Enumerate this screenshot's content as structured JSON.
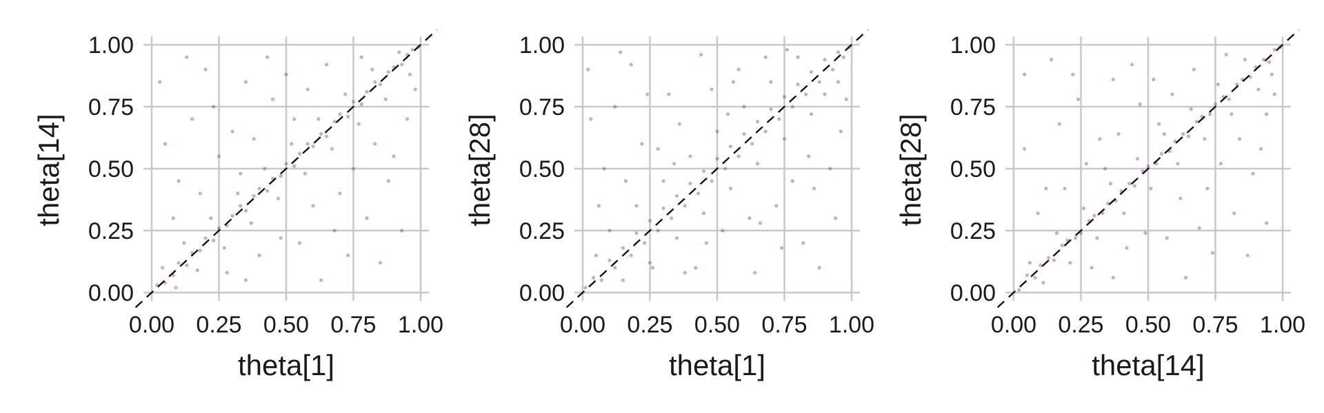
{
  "colors": {
    "point": "#7b2a86",
    "grid": "#c8c8c8",
    "identity_line": "#111111"
  },
  "chart_data": [
    {
      "type": "scatter",
      "xlabel": "theta[1]",
      "ylabel": "theta[14]",
      "xlim": [
        0,
        1
      ],
      "ylim": [
        0,
        1
      ],
      "xticks": [
        "0.00",
        "0.25",
        "0.50",
        "0.75",
        "1.00"
      ],
      "yticks": [
        "0.00",
        "0.25",
        "0.50",
        "0.75",
        "1.00"
      ],
      "grid": true,
      "reference_line": {
        "slope": 1,
        "intercept": 0,
        "style": "dashed"
      },
      "point_style": {
        "color": "#7b2a86",
        "alpha": 0.25
      },
      "points_description_count": 300,
      "points": [
        [
          0.02,
          0.03
        ],
        [
          0.05,
          0.04
        ],
        [
          0.08,
          0.07
        ],
        [
          0.1,
          0.12
        ],
        [
          0.13,
          0.11
        ],
        [
          0.15,
          0.16
        ],
        [
          0.18,
          0.17
        ],
        [
          0.2,
          0.22
        ],
        [
          0.23,
          0.21
        ],
        [
          0.25,
          0.26
        ],
        [
          0.28,
          0.27
        ],
        [
          0.3,
          0.31
        ],
        [
          0.33,
          0.35
        ],
        [
          0.35,
          0.33
        ],
        [
          0.38,
          0.39
        ],
        [
          0.4,
          0.42
        ],
        [
          0.43,
          0.41
        ],
        [
          0.45,
          0.46
        ],
        [
          0.48,
          0.47
        ],
        [
          0.5,
          0.52
        ],
        [
          0.53,
          0.51
        ],
        [
          0.55,
          0.56
        ],
        [
          0.58,
          0.6
        ],
        [
          0.6,
          0.59
        ],
        [
          0.63,
          0.64
        ],
        [
          0.65,
          0.63
        ],
        [
          0.68,
          0.69
        ],
        [
          0.7,
          0.72
        ],
        [
          0.73,
          0.71
        ],
        [
          0.75,
          0.77
        ],
        [
          0.78,
          0.76
        ],
        [
          0.8,
          0.81
        ],
        [
          0.83,
          0.85
        ],
        [
          0.85,
          0.84
        ],
        [
          0.88,
          0.89
        ],
        [
          0.9,
          0.91
        ],
        [
          0.93,
          0.92
        ],
        [
          0.95,
          0.96
        ],
        [
          0.97,
          0.98
        ],
        [
          0.99,
          0.99
        ],
        [
          0.04,
          0.1
        ],
        [
          0.09,
          0.02
        ],
        [
          0.12,
          0.2
        ],
        [
          0.17,
          0.09
        ],
        [
          0.22,
          0.3
        ],
        [
          0.27,
          0.18
        ],
        [
          0.32,
          0.4
        ],
        [
          0.37,
          0.28
        ],
        [
          0.42,
          0.5
        ],
        [
          0.47,
          0.38
        ],
        [
          0.52,
          0.6
        ],
        [
          0.57,
          0.48
        ],
        [
          0.62,
          0.7
        ],
        [
          0.67,
          0.58
        ],
        [
          0.72,
          0.8
        ],
        [
          0.77,
          0.68
        ],
        [
          0.82,
          0.9
        ],
        [
          0.87,
          0.78
        ],
        [
          0.92,
          0.97
        ],
        [
          0.96,
          0.88
        ],
        [
          0.1,
          0.45
        ],
        [
          0.15,
          0.7
        ],
        [
          0.2,
          0.9
        ],
        [
          0.3,
          0.65
        ],
        [
          0.35,
          0.85
        ],
        [
          0.4,
          0.15
        ],
        [
          0.55,
          0.2
        ],
        [
          0.6,
          0.35
        ],
        [
          0.7,
          0.4
        ],
        [
          0.8,
          0.3
        ],
        [
          0.9,
          0.55
        ],
        [
          0.85,
          0.12
        ],
        [
          0.05,
          0.6
        ],
        [
          0.25,
          0.55
        ],
        [
          0.45,
          0.78
        ],
        [
          0.65,
          0.92
        ],
        [
          0.75,
          0.5
        ],
        [
          0.95,
          0.7
        ],
        [
          0.5,
          0.88
        ],
        [
          0.35,
          0.05
        ],
        [
          0.08,
          0.3
        ],
        [
          0.18,
          0.4
        ],
        [
          0.28,
          0.08
        ],
        [
          0.38,
          0.62
        ],
        [
          0.48,
          0.22
        ],
        [
          0.58,
          0.82
        ],
        [
          0.68,
          0.25
        ],
        [
          0.78,
          0.95
        ],
        [
          0.88,
          0.45
        ],
        [
          0.98,
          0.82
        ],
        [
          0.03,
          0.85
        ],
        [
          0.13,
          0.95
        ],
        [
          0.23,
          0.75
        ],
        [
          0.43,
          0.95
        ],
        [
          0.63,
          0.05
        ],
        [
          0.73,
          0.15
        ],
        [
          0.83,
          0.6
        ],
        [
          0.93,
          0.25
        ],
        [
          0.53,
          0.7
        ],
        [
          0.33,
          0.48
        ]
      ]
    },
    {
      "type": "scatter",
      "xlabel": "theta[1]",
      "ylabel": "theta[28]",
      "xlim": [
        0,
        1
      ],
      "ylim": [
        0,
        1
      ],
      "xticks": [
        "0.00",
        "0.25",
        "0.50",
        "0.75",
        "1.00"
      ],
      "yticks": [
        "0.00",
        "0.25",
        "0.50",
        "0.75",
        "1.00"
      ],
      "grid": true,
      "reference_line": {
        "slope": 1,
        "intercept": 0,
        "style": "dashed"
      },
      "point_style": {
        "color": "#7b2a86",
        "alpha": 0.25
      },
      "points": [
        [
          0.01,
          0.02
        ],
        [
          0.04,
          0.06
        ],
        [
          0.07,
          0.05
        ],
        [
          0.1,
          0.13
        ],
        [
          0.12,
          0.1
        ],
        [
          0.15,
          0.18
        ],
        [
          0.18,
          0.15
        ],
        [
          0.2,
          0.24
        ],
        [
          0.23,
          0.2
        ],
        [
          0.25,
          0.29
        ],
        [
          0.28,
          0.25
        ],
        [
          0.3,
          0.34
        ],
        [
          0.33,
          0.3
        ],
        [
          0.35,
          0.39
        ],
        [
          0.38,
          0.35
        ],
        [
          0.4,
          0.44
        ],
        [
          0.43,
          0.4
        ],
        [
          0.45,
          0.49
        ],
        [
          0.48,
          0.45
        ],
        [
          0.5,
          0.54
        ],
        [
          0.53,
          0.5
        ],
        [
          0.55,
          0.59
        ],
        [
          0.58,
          0.55
        ],
        [
          0.6,
          0.64
        ],
        [
          0.63,
          0.6
        ],
        [
          0.65,
          0.69
        ],
        [
          0.68,
          0.65
        ],
        [
          0.7,
          0.74
        ],
        [
          0.73,
          0.7
        ],
        [
          0.75,
          0.79
        ],
        [
          0.78,
          0.75
        ],
        [
          0.8,
          0.84
        ],
        [
          0.83,
          0.8
        ],
        [
          0.85,
          0.89
        ],
        [
          0.88,
          0.85
        ],
        [
          0.9,
          0.94
        ],
        [
          0.93,
          0.9
        ],
        [
          0.95,
          0.97
        ],
        [
          0.97,
          0.95
        ],
        [
          0.99,
          0.99
        ],
        [
          0.05,
          0.15
        ],
        [
          0.1,
          0.25
        ],
        [
          0.15,
          0.05
        ],
        [
          0.2,
          0.35
        ],
        [
          0.25,
          0.12
        ],
        [
          0.3,
          0.45
        ],
        [
          0.35,
          0.22
        ],
        [
          0.4,
          0.55
        ],
        [
          0.45,
          0.32
        ],
        [
          0.5,
          0.65
        ],
        [
          0.55,
          0.42
        ],
        [
          0.6,
          0.75
        ],
        [
          0.65,
          0.52
        ],
        [
          0.7,
          0.85
        ],
        [
          0.75,
          0.62
        ],
        [
          0.8,
          0.95
        ],
        [
          0.85,
          0.72
        ],
        [
          0.9,
          0.8
        ],
        [
          0.95,
          0.85
        ],
        [
          0.08,
          0.5
        ],
        [
          0.12,
          0.75
        ],
        [
          0.18,
          0.92
        ],
        [
          0.22,
          0.6
        ],
        [
          0.32,
          0.8
        ],
        [
          0.42,
          0.1
        ],
        [
          0.52,
          0.25
        ],
        [
          0.62,
          0.3
        ],
        [
          0.72,
          0.35
        ],
        [
          0.82,
          0.2
        ],
        [
          0.92,
          0.5
        ],
        [
          0.88,
          0.1
        ],
        [
          0.03,
          0.7
        ],
        [
          0.28,
          0.58
        ],
        [
          0.48,
          0.82
        ],
        [
          0.68,
          0.95
        ],
        [
          0.78,
          0.45
        ],
        [
          0.96,
          0.65
        ],
        [
          0.58,
          0.9
        ],
        [
          0.38,
          0.08
        ],
        [
          0.06,
          0.35
        ],
        [
          0.16,
          0.45
        ],
        [
          0.26,
          0.1
        ],
        [
          0.36,
          0.68
        ],
        [
          0.46,
          0.2
        ],
        [
          0.56,
          0.85
        ],
        [
          0.66,
          0.28
        ],
        [
          0.76,
          0.98
        ],
        [
          0.86,
          0.42
        ],
        [
          0.98,
          0.78
        ],
        [
          0.02,
          0.9
        ],
        [
          0.14,
          0.97
        ],
        [
          0.24,
          0.8
        ],
        [
          0.44,
          0.96
        ],
        [
          0.64,
          0.08
        ],
        [
          0.74,
          0.18
        ],
        [
          0.84,
          0.55
        ],
        [
          0.94,
          0.3
        ],
        [
          0.54,
          0.72
        ],
        [
          0.34,
          0.52
        ]
      ]
    },
    {
      "type": "scatter",
      "xlabel": "theta[14]",
      "ylabel": "theta[28]",
      "xlim": [
        0,
        1
      ],
      "ylim": [
        0,
        1
      ],
      "xticks": [
        "0.00",
        "0.25",
        "0.50",
        "0.75",
        "1.00"
      ],
      "yticks": [
        "0.00",
        "0.25",
        "0.50",
        "0.75",
        "1.00"
      ],
      "grid": true,
      "reference_line": {
        "slope": 1,
        "intercept": 0,
        "style": "dashed"
      },
      "point_style": {
        "color": "#7b2a86",
        "alpha": 0.25
      },
      "points": [
        [
          0.02,
          0.01
        ],
        [
          0.05,
          0.07
        ],
        [
          0.08,
          0.06
        ],
        [
          0.1,
          0.11
        ],
        [
          0.13,
          0.14
        ],
        [
          0.15,
          0.13
        ],
        [
          0.18,
          0.19
        ],
        [
          0.2,
          0.21
        ],
        [
          0.23,
          0.22
        ],
        [
          0.25,
          0.24
        ],
        [
          0.28,
          0.29
        ],
        [
          0.3,
          0.31
        ],
        [
          0.33,
          0.32
        ],
        [
          0.35,
          0.36
        ],
        [
          0.38,
          0.37
        ],
        [
          0.4,
          0.41
        ],
        [
          0.43,
          0.44
        ],
        [
          0.45,
          0.43
        ],
        [
          0.48,
          0.49
        ],
        [
          0.5,
          0.51
        ],
        [
          0.53,
          0.52
        ],
        [
          0.55,
          0.56
        ],
        [
          0.58,
          0.57
        ],
        [
          0.6,
          0.61
        ],
        [
          0.63,
          0.64
        ],
        [
          0.65,
          0.63
        ],
        [
          0.68,
          0.69
        ],
        [
          0.7,
          0.71
        ],
        [
          0.73,
          0.72
        ],
        [
          0.75,
          0.76
        ],
        [
          0.78,
          0.79
        ],
        [
          0.8,
          0.78
        ],
        [
          0.83,
          0.84
        ],
        [
          0.85,
          0.86
        ],
        [
          0.88,
          0.87
        ],
        [
          0.9,
          0.91
        ],
        [
          0.93,
          0.94
        ],
        [
          0.95,
          0.93
        ],
        [
          0.97,
          0.98
        ],
        [
          0.99,
          0.99
        ],
        [
          0.06,
          0.12
        ],
        [
          0.11,
          0.04
        ],
        [
          0.16,
          0.24
        ],
        [
          0.21,
          0.12
        ],
        [
          0.26,
          0.34
        ],
        [
          0.31,
          0.22
        ],
        [
          0.36,
          0.44
        ],
        [
          0.41,
          0.32
        ],
        [
          0.46,
          0.54
        ],
        [
          0.51,
          0.42
        ],
        [
          0.56,
          0.64
        ],
        [
          0.61,
          0.52
        ],
        [
          0.66,
          0.74
        ],
        [
          0.71,
          0.62
        ],
        [
          0.76,
          0.84
        ],
        [
          0.81,
          0.72
        ],
        [
          0.86,
          0.94
        ],
        [
          0.91,
          0.82
        ],
        [
          0.96,
          0.88
        ],
        [
          0.12,
          0.42
        ],
        [
          0.17,
          0.68
        ],
        [
          0.22,
          0.88
        ],
        [
          0.32,
          0.62
        ],
        [
          0.37,
          0.86
        ],
        [
          0.42,
          0.18
        ],
        [
          0.57,
          0.22
        ],
        [
          0.62,
          0.38
        ],
        [
          0.72,
          0.42
        ],
        [
          0.82,
          0.32
        ],
        [
          0.92,
          0.58
        ],
        [
          0.87,
          0.15
        ],
        [
          0.04,
          0.58
        ],
        [
          0.27,
          0.52
        ],
        [
          0.47,
          0.76
        ],
        [
          0.67,
          0.9
        ],
        [
          0.77,
          0.52
        ],
        [
          0.94,
          0.72
        ],
        [
          0.52,
          0.86
        ],
        [
          0.37,
          0.06
        ],
        [
          0.09,
          0.32
        ],
        [
          0.19,
          0.42
        ],
        [
          0.29,
          0.1
        ],
        [
          0.39,
          0.64
        ],
        [
          0.49,
          0.24
        ],
        [
          0.59,
          0.8
        ],
        [
          0.69,
          0.26
        ],
        [
          0.79,
          0.96
        ],
        [
          0.89,
          0.48
        ],
        [
          0.97,
          0.8
        ],
        [
          0.04,
          0.88
        ],
        [
          0.14,
          0.94
        ],
        [
          0.24,
          0.78
        ],
        [
          0.44,
          0.92
        ],
        [
          0.64,
          0.06
        ],
        [
          0.74,
          0.16
        ],
        [
          0.84,
          0.62
        ],
        [
          0.94,
          0.28
        ],
        [
          0.54,
          0.68
        ],
        [
          0.34,
          0.5
        ]
      ]
    }
  ]
}
